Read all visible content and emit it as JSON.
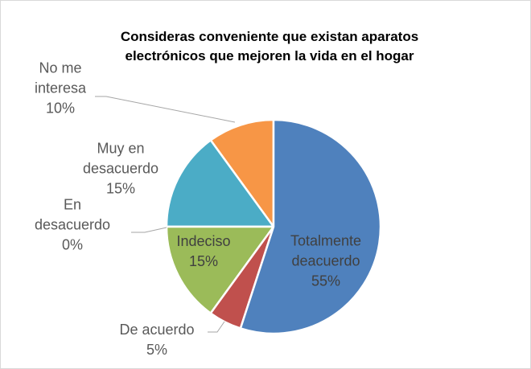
{
  "chart_data": {
    "type": "pie",
    "title": "Consideras conveniente que existan aparatos electrónicos que mejoren la vida en el hogar",
    "categories": [
      "Totalmente deacuerdo",
      "De acuerdo",
      "Indeciso",
      "En desacuerdo",
      "Muy en desacuerdo",
      "No me interesa"
    ],
    "values": [
      55,
      5,
      15,
      0,
      15,
      10
    ],
    "value_labels": [
      "55%",
      "5%",
      "15%",
      "0%",
      "15%",
      "10%"
    ],
    "colors": [
      "#4f81bd",
      "#c0504d",
      "#9bbb59",
      "#8064a2",
      "#4bacc6",
      "#f79646"
    ]
  }
}
